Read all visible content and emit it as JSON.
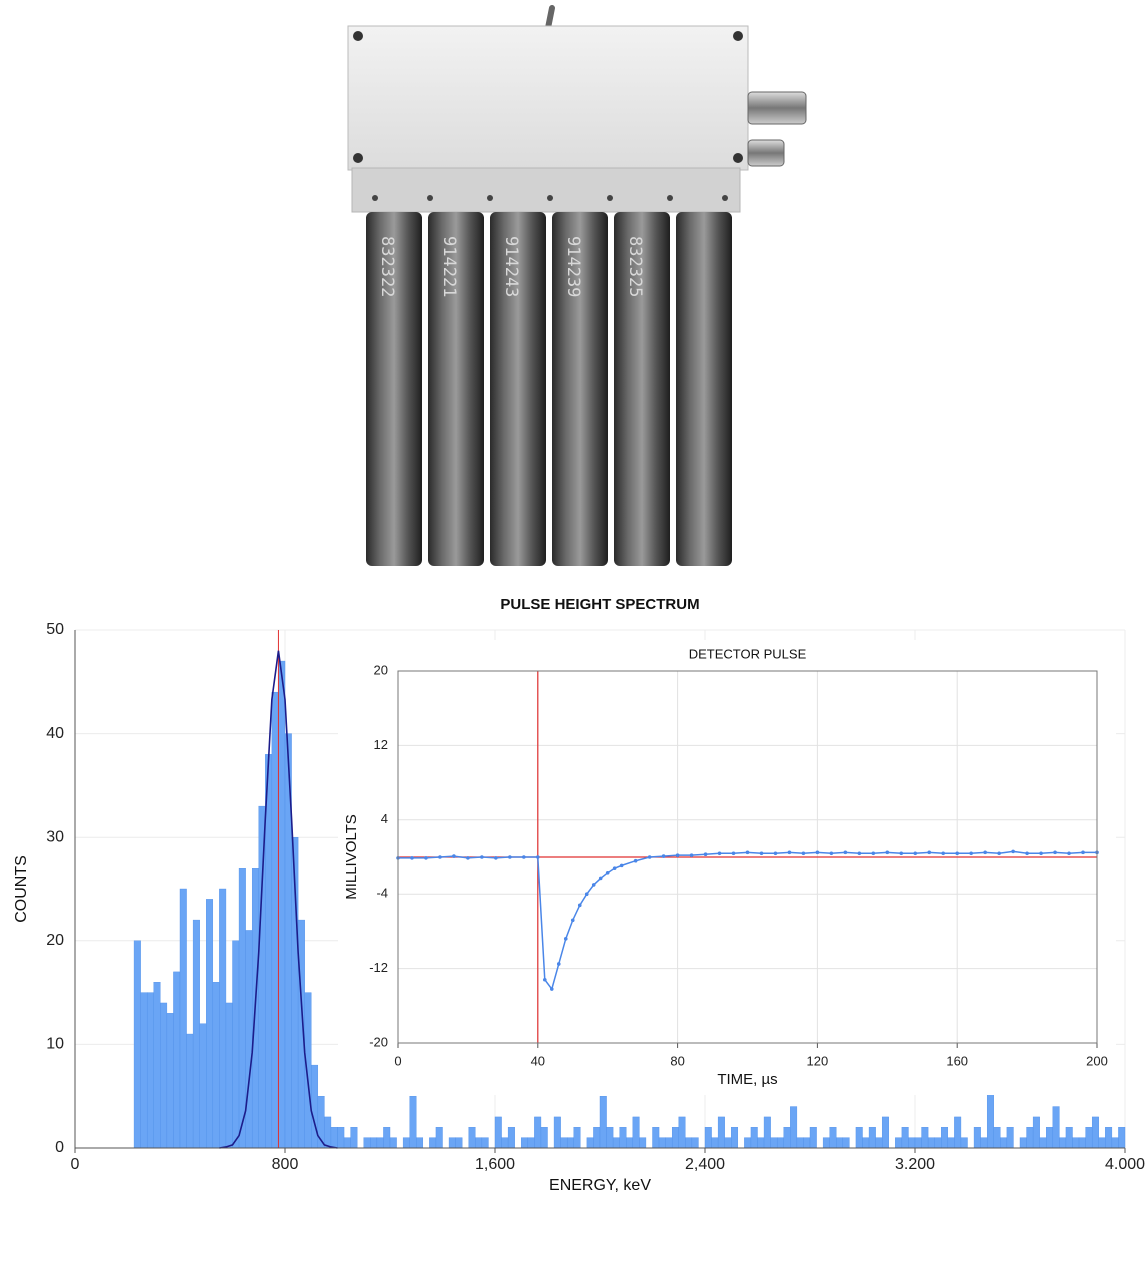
{
  "photo": {
    "tube_labels": [
      "832322",
      "914221",
      "914243",
      "914239",
      "832325"
    ]
  },
  "chart_data": [
    {
      "type": "histogram",
      "title": "PULSE HEIGHT SPECTRUM",
      "x_label": "ENERGY, keV",
      "y_label": "COUNTS",
      "xlim": [
        0,
        4000
      ],
      "ylim": [
        0,
        50
      ],
      "xticks": [
        0,
        800,
        {
          "value": 1600,
          "label": "1,600"
        },
        {
          "value": 2400,
          "label": "2,400"
        },
        {
          "value": 3200,
          "label": "3.200"
        },
        {
          "value": 4000,
          "label": "4.000"
        }
      ],
      "yticks": [
        0,
        10,
        20,
        30,
        40,
        50
      ],
      "grid": true,
      "color": "#6aa5f5",
      "vline": 775,
      "vline_color": "#e03030",
      "bins": [
        225,
        250,
        275,
        300,
        325,
        350,
        375,
        400,
        425,
        450,
        475,
        500,
        525,
        550,
        575,
        600,
        625,
        650,
        675,
        700,
        725,
        750,
        775,
        800,
        825,
        850,
        875,
        900,
        925,
        950,
        975,
        1000,
        1025,
        1050,
        1075,
        1100,
        1125,
        1150,
        1175,
        1200,
        1225,
        1250,
        1275,
        1300,
        1325,
        1350,
        1375,
        1400,
        1425,
        1450,
        1475,
        1500,
        1525,
        1550,
        1575,
        1600,
        1625,
        1650,
        1675,
        1700,
        1725,
        1750,
        1775,
        1800,
        1825,
        1850,
        1875,
        1900,
        1925,
        1950,
        1975,
        2000,
        2025,
        2050,
        2075,
        2100,
        2125,
        2150,
        2175,
        2200,
        2225,
        2250,
        2275,
        2300,
        2325,
        2350,
        2375,
        2400,
        2425,
        2450,
        2475,
        2500,
        2525,
        2550,
        2575,
        2600,
        2625,
        2650,
        2675,
        2700,
        2725,
        2750,
        2775,
        2800,
        2825,
        2850,
        2875,
        2900,
        2925,
        2950,
        2975,
        3000,
        3025,
        3050,
        3075,
        3100,
        3125,
        3150,
        3175,
        3200,
        3225,
        3250,
        3275,
        3300,
        3325,
        3350,
        3375,
        3400,
        3425,
        3450,
        3475,
        3500,
        3525,
        3550,
        3575,
        3600,
        3625,
        3650,
        3675,
        3700,
        3725,
        3750,
        3775,
        3800,
        3825,
        3850,
        3875,
        3900,
        3925,
        3950,
        3975,
        4000
      ],
      "values": [
        20,
        15,
        15,
        16,
        14,
        13,
        17,
        25,
        11,
        22,
        12,
        24,
        16,
        25,
        14,
        20,
        27,
        21,
        27,
        33,
        38,
        44,
        47,
        40,
        30,
        22,
        15,
        8,
        5,
        3,
        2,
        2,
        1,
        2,
        0,
        1,
        1,
        1,
        2,
        1,
        0,
        1,
        5,
        1,
        0,
        1,
        2,
        0,
        1,
        1,
        0,
        2,
        1,
        1,
        0,
        3,
        1,
        2,
        0,
        1,
        1,
        3,
        2,
        0,
        3,
        1,
        1,
        2,
        0,
        1,
        2,
        5,
        2,
        1,
        2,
        1,
        3,
        1,
        0,
        2,
        1,
        1,
        2,
        3,
        1,
        1,
        0,
        2,
        1,
        3,
        1,
        2,
        0,
        1,
        2,
        1,
        3,
        1,
        1,
        2,
        4,
        1,
        1,
        2,
        0,
        1,
        2,
        1,
        1,
        0,
        2,
        1,
        2,
        1,
        3,
        0,
        1,
        2,
        1,
        1,
        2,
        1,
        1,
        2,
        1,
        3,
        1,
        0,
        2,
        1,
        6,
        2,
        1,
        2,
        0,
        1,
        2,
        3,
        1,
        2,
        4,
        1,
        2,
        1,
        1,
        2,
        3,
        1,
        2,
        1,
        2
      ],
      "fit": {
        "color": "#1c1c8a",
        "x": [
          550,
          575,
          600,
          625,
          650,
          675,
          700,
          725,
          750,
          775,
          800,
          825,
          850,
          875,
          900,
          925,
          950,
          975,
          1000
        ],
        "values": [
          0,
          0.1,
          0.3,
          1.2,
          3.6,
          9.2,
          18.9,
          31.8,
          43.3,
          48,
          43.3,
          31.8,
          18.9,
          9.2,
          3.6,
          1.2,
          0.3,
          0.1,
          0
        ]
      }
    },
    {
      "type": "line",
      "title": "DETECTOR PULSE",
      "x_label": "TIME, µs",
      "y_label": "MILLIVOLTS",
      "xlim": [
        0,
        200
      ],
      "ylim": [
        -20,
        20
      ],
      "xticks": [
        0,
        40,
        80,
        120,
        160,
        200
      ],
      "yticks": [
        -20,
        -12,
        -4,
        4,
        12,
        20
      ],
      "grid": true,
      "color": "#4a86e8",
      "vline": 40,
      "hline": 0,
      "vline_color": "#e03030",
      "x": [
        0,
        4,
        8,
        12,
        16,
        20,
        24,
        28,
        32,
        36,
        40,
        42,
        44,
        46,
        48,
        50,
        52,
        54,
        56,
        58,
        60,
        62,
        64,
        68,
        72,
        76,
        80,
        84,
        88,
        92,
        96,
        100,
        104,
        108,
        112,
        116,
        120,
        124,
        128,
        132,
        136,
        140,
        144,
        148,
        152,
        156,
        160,
        164,
        168,
        172,
        176,
        180,
        184,
        188,
        192,
        196,
        200
      ],
      "values": [
        -0.1,
        -0.1,
        -0.1,
        0,
        0.1,
        -0.1,
        0,
        -0.1,
        0,
        0,
        0,
        -13.2,
        -14.2,
        -11.5,
        -8.8,
        -6.8,
        -5.2,
        -4,
        -3,
        -2.3,
        -1.7,
        -1.2,
        -0.9,
        -0.4,
        0,
        0.1,
        0.2,
        0.2,
        0.3,
        0.4,
        0.4,
        0.5,
        0.4,
        0.4,
        0.5,
        0.4,
        0.5,
        0.4,
        0.5,
        0.4,
        0.4,
        0.5,
        0.4,
        0.4,
        0.5,
        0.4,
        0.4,
        0.4,
        0.5,
        0.4,
        0.6,
        0.4,
        0.4,
        0.5,
        0.4,
        0.5,
        0.5
      ]
    }
  ]
}
